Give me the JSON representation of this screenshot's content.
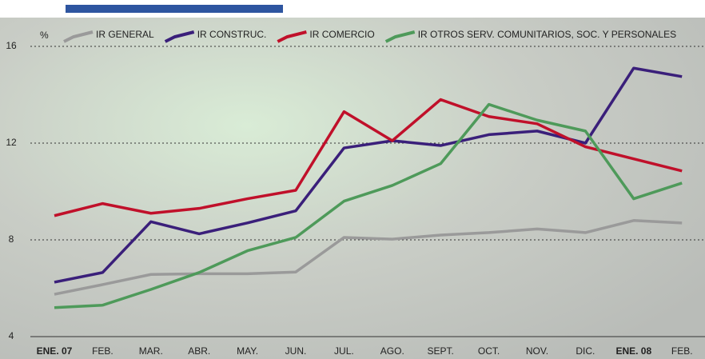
{
  "chart_data": {
    "type": "line",
    "y_label": "%",
    "categories": [
      "ENE. 07",
      "FEB.",
      "MAR.",
      "ABR.",
      "MAY.",
      "JUN.",
      "JUL.",
      "AGO.",
      "SEPT.",
      "OCT.",
      "NOV.",
      "DIC.",
      "ENE. 08",
      "FEB."
    ],
    "series": [
      {
        "name": "IR GENERAL",
        "color": "#9a9a9a",
        "values": [
          5.75,
          6.15,
          6.57,
          6.6,
          6.6,
          6.67,
          8.1,
          8.03,
          8.2,
          8.3,
          8.45,
          8.3,
          8.8,
          8.7
        ]
      },
      {
        "name": "IR CONSTRUC.",
        "color": "#3a1f7a",
        "values": [
          6.25,
          6.65,
          8.75,
          8.25,
          8.7,
          9.2,
          11.8,
          12.1,
          11.9,
          12.35,
          12.5,
          12.0,
          15.1,
          14.75
        ]
      },
      {
        "name": "IR COMERCIO",
        "color": "#c0102a",
        "values": [
          9.0,
          9.5,
          9.1,
          9.3,
          9.7,
          10.05,
          13.3,
          12.1,
          13.8,
          13.1,
          12.8,
          11.85,
          11.35,
          10.85
        ]
      },
      {
        "name": "IR OTROS SERV. COMUNITARIOS, SOC. Y PERSONALES",
        "color": "#4e9a5a",
        "values": [
          5.2,
          5.3,
          5.95,
          6.65,
          7.55,
          8.1,
          9.6,
          10.25,
          11.15,
          13.6,
          12.95,
          12.5,
          9.7,
          10.35
        ]
      }
    ],
    "ylim": [
      4,
      16
    ],
    "yticks": [
      4,
      8,
      12,
      16
    ],
    "grid": true
  }
}
